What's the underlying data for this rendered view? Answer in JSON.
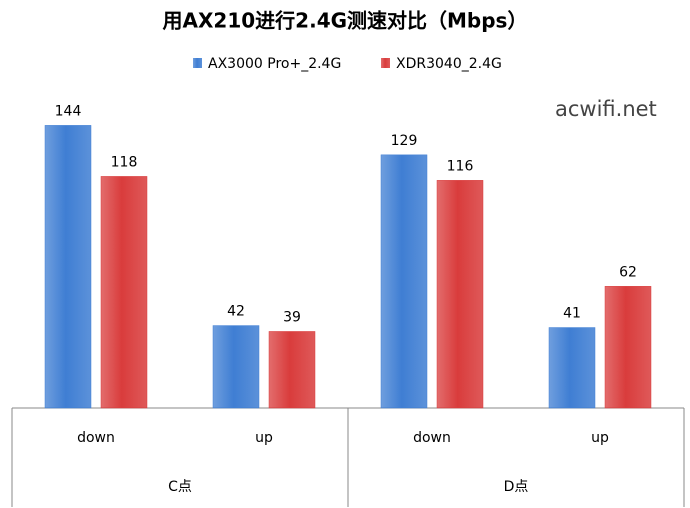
{
  "chart_data": {
    "type": "bar",
    "title": "用AX210进行2.4G测速对比（Mbps）",
    "watermark": "acwifi.net",
    "categories": [
      "down",
      "up",
      "down",
      "up"
    ],
    "groups": [
      "C点",
      "D点"
    ],
    "series": [
      {
        "name": "AX3000 Pro+_2.4G",
        "color": "#3f7ed3",
        "values": [
          144,
          42,
          129,
          41
        ]
      },
      {
        "name": "XDR3040_2.4G",
        "color": "#d93c3c",
        "values": [
          118,
          39,
          116,
          62
        ]
      }
    ],
    "ylim": [
      0,
      160
    ]
  }
}
